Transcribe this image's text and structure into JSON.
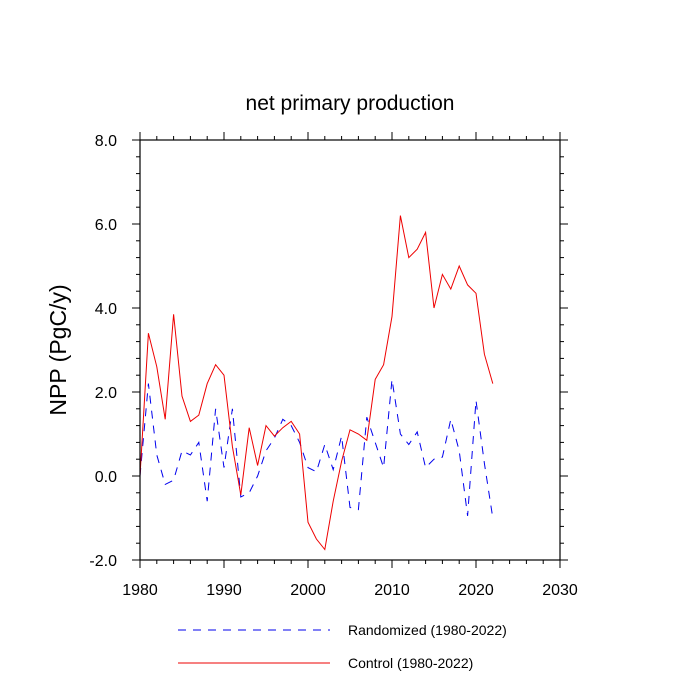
{
  "chart_data": {
    "type": "line",
    "title": "net primary production",
    "xlabel": "",
    "ylabel": "NPP  (PgC/y)",
    "xlim": [
      1980,
      2030
    ],
    "ylim": [
      -2.0,
      8.0
    ],
    "x_ticks": [
      1980,
      1990,
      2000,
      2010,
      2020,
      2030
    ],
    "y_ticks": [
      -2.0,
      0.0,
      2.0,
      4.0,
      6.0,
      8.0
    ],
    "x_tick_labels": [
      "1980",
      "1990",
      "2000",
      "2010",
      "2020",
      "2030"
    ],
    "y_tick_labels": [
      "-2.0",
      "0.0",
      "2.0",
      "4.0",
      "6.0",
      "8.0"
    ],
    "grid": false,
    "legend_position": "bottom",
    "x": [
      1980,
      1981,
      1982,
      1983,
      1984,
      1985,
      1986,
      1987,
      1988,
      1989,
      1990,
      1991,
      1992,
      1993,
      1994,
      1995,
      1996,
      1997,
      1998,
      1999,
      2000,
      2001,
      2002,
      2003,
      2004,
      2005,
      2006,
      2007,
      2008,
      2009,
      2010,
      2011,
      2012,
      2013,
      2014,
      2015,
      2016,
      2017,
      2018,
      2019,
      2020,
      2021,
      2022
    ],
    "series": [
      {
        "name": "Randomized (1980-2022)",
        "color": "#0000ee",
        "dash": "dashed",
        "values": [
          0.0,
          2.2,
          0.5,
          -0.2,
          -0.1,
          0.6,
          0.5,
          0.8,
          -0.6,
          1.6,
          0.2,
          1.6,
          -0.5,
          -0.4,
          0.0,
          0.6,
          0.9,
          1.35,
          1.2,
          0.8,
          0.2,
          0.1,
          0.75,
          0.15,
          0.95,
          -0.75,
          -0.8,
          1.4,
          0.8,
          0.2,
          2.3,
          1.0,
          0.75,
          1.05,
          0.2,
          0.4,
          0.45,
          1.35,
          0.6,
          -0.95,
          1.8,
          0.3,
          -1.0
        ]
      },
      {
        "name": "Control (1980-2022)",
        "color": "#ee0000",
        "dash": "solid",
        "values": [
          0.0,
          3.4,
          2.6,
          1.35,
          3.85,
          1.9,
          1.3,
          1.45,
          2.2,
          2.65,
          2.4,
          0.7,
          -0.45,
          1.15,
          0.25,
          1.2,
          0.95,
          1.15,
          1.3,
          1.0,
          -1.1,
          -1.5,
          -1.75,
          -0.6,
          0.35,
          1.1,
          1.0,
          0.85,
          2.3,
          2.65,
          3.8,
          6.2,
          5.2,
          5.4,
          5.8,
          4.0,
          4.8,
          4.45,
          5.0,
          4.55,
          4.35,
          2.9,
          2.2
        ]
      }
    ]
  }
}
